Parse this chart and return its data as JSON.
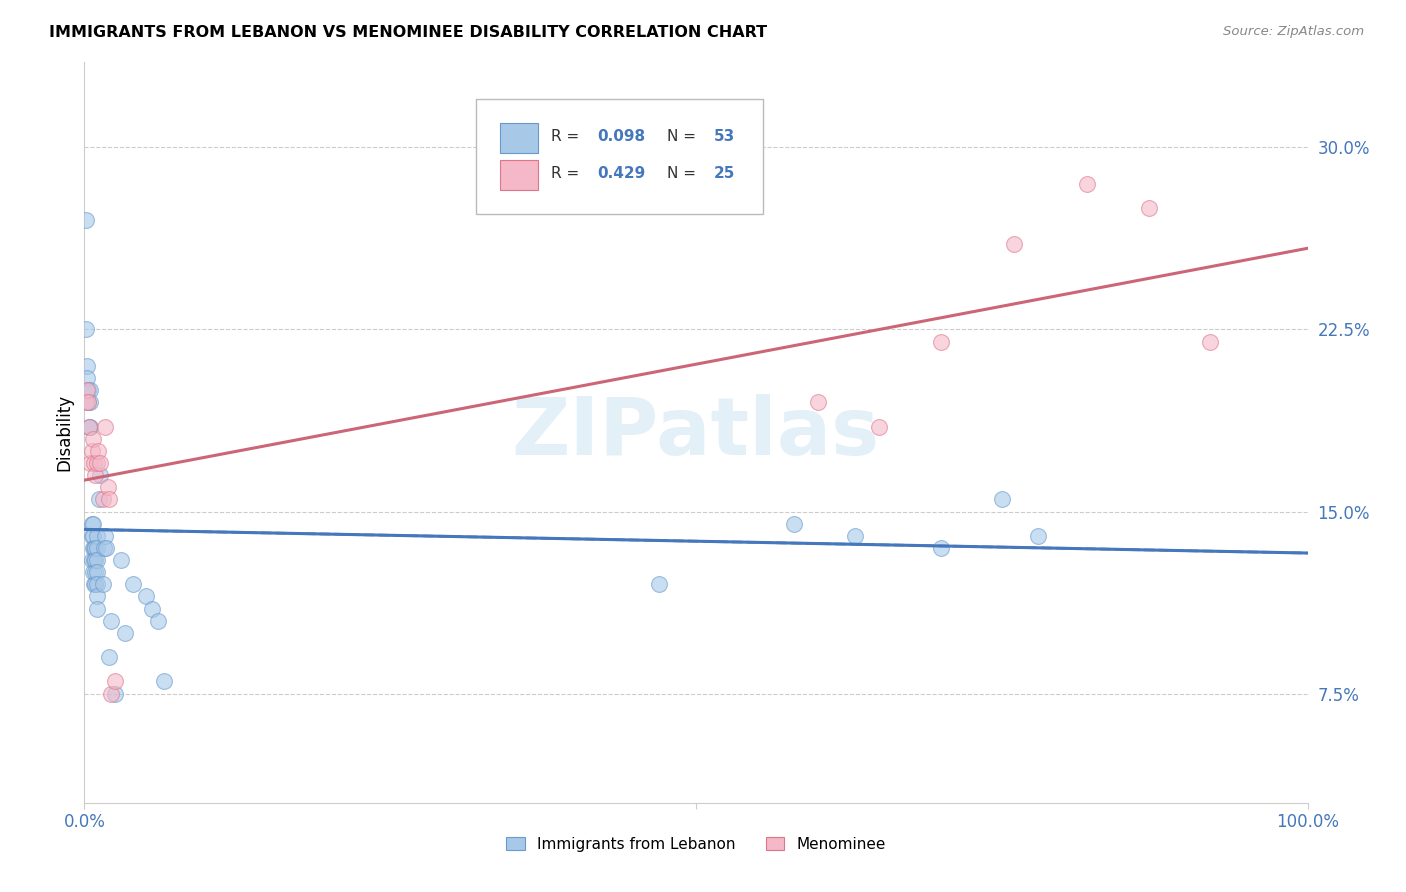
{
  "title": "IMMIGRANTS FROM LEBANON VS MENOMINEE DISABILITY CORRELATION CHART",
  "source": "Source: ZipAtlas.com",
  "ylabel": "Disability",
  "color_blue": "#a8c8e8",
  "color_blue_edge": "#6699cc",
  "color_pink": "#f4b8c8",
  "color_pink_edge": "#dd7788",
  "color_line_blue": "#4477bb",
  "color_line_pink": "#cc6677",
  "watermark": "ZIPatlas",
  "legend_r1": "0.098",
  "legend_n1": "53",
  "legend_r2": "0.429",
  "legend_n2": "25",
  "blue_x": [
    0.001,
    0.001,
    0.002,
    0.002,
    0.003,
    0.003,
    0.004,
    0.005,
    0.005,
    0.005,
    0.006,
    0.006,
    0.006,
    0.007,
    0.007,
    0.007,
    0.007,
    0.008,
    0.008,
    0.008,
    0.009,
    0.009,
    0.009,
    0.009,
    0.01,
    0.01,
    0.01,
    0.01,
    0.01,
    0.01,
    0.01,
    0.012,
    0.013,
    0.015,
    0.016,
    0.017,
    0.018,
    0.02,
    0.022,
    0.025,
    0.03,
    0.033,
    0.04,
    0.05,
    0.055,
    0.06,
    0.065,
    0.47,
    0.58,
    0.63,
    0.7,
    0.75,
    0.78
  ],
  "blue_y": [
    0.225,
    0.27,
    0.21,
    0.205,
    0.2,
    0.195,
    0.185,
    0.2,
    0.195,
    0.185,
    0.145,
    0.14,
    0.13,
    0.145,
    0.14,
    0.135,
    0.125,
    0.135,
    0.13,
    0.12,
    0.135,
    0.13,
    0.125,
    0.12,
    0.14,
    0.135,
    0.13,
    0.125,
    0.12,
    0.115,
    0.11,
    0.155,
    0.165,
    0.12,
    0.135,
    0.14,
    0.135,
    0.09,
    0.105,
    0.075,
    0.13,
    0.1,
    0.12,
    0.115,
    0.11,
    0.105,
    0.08,
    0.12,
    0.145,
    0.14,
    0.135,
    0.155,
    0.14
  ],
  "pink_x": [
    0.001,
    0.002,
    0.003,
    0.004,
    0.005,
    0.006,
    0.007,
    0.008,
    0.009,
    0.01,
    0.011,
    0.013,
    0.015,
    0.017,
    0.019,
    0.02,
    0.022,
    0.025,
    0.6,
    0.65,
    0.7,
    0.76,
    0.82,
    0.87,
    0.92
  ],
  "pink_y": [
    0.195,
    0.2,
    0.195,
    0.185,
    0.17,
    0.175,
    0.18,
    0.17,
    0.165,
    0.17,
    0.175,
    0.17,
    0.155,
    0.185,
    0.16,
    0.155,
    0.075,
    0.08,
    0.195,
    0.185,
    0.22,
    0.26,
    0.285,
    0.275,
    0.22
  ],
  "yticks": [
    0.075,
    0.15,
    0.225,
    0.3
  ],
  "ytick_labels": [
    "7.5%",
    "15.0%",
    "22.5%",
    "30.0%"
  ],
  "ylim": [
    0.03,
    0.335
  ],
  "xlim": [
    0.0,
    1.0
  ]
}
